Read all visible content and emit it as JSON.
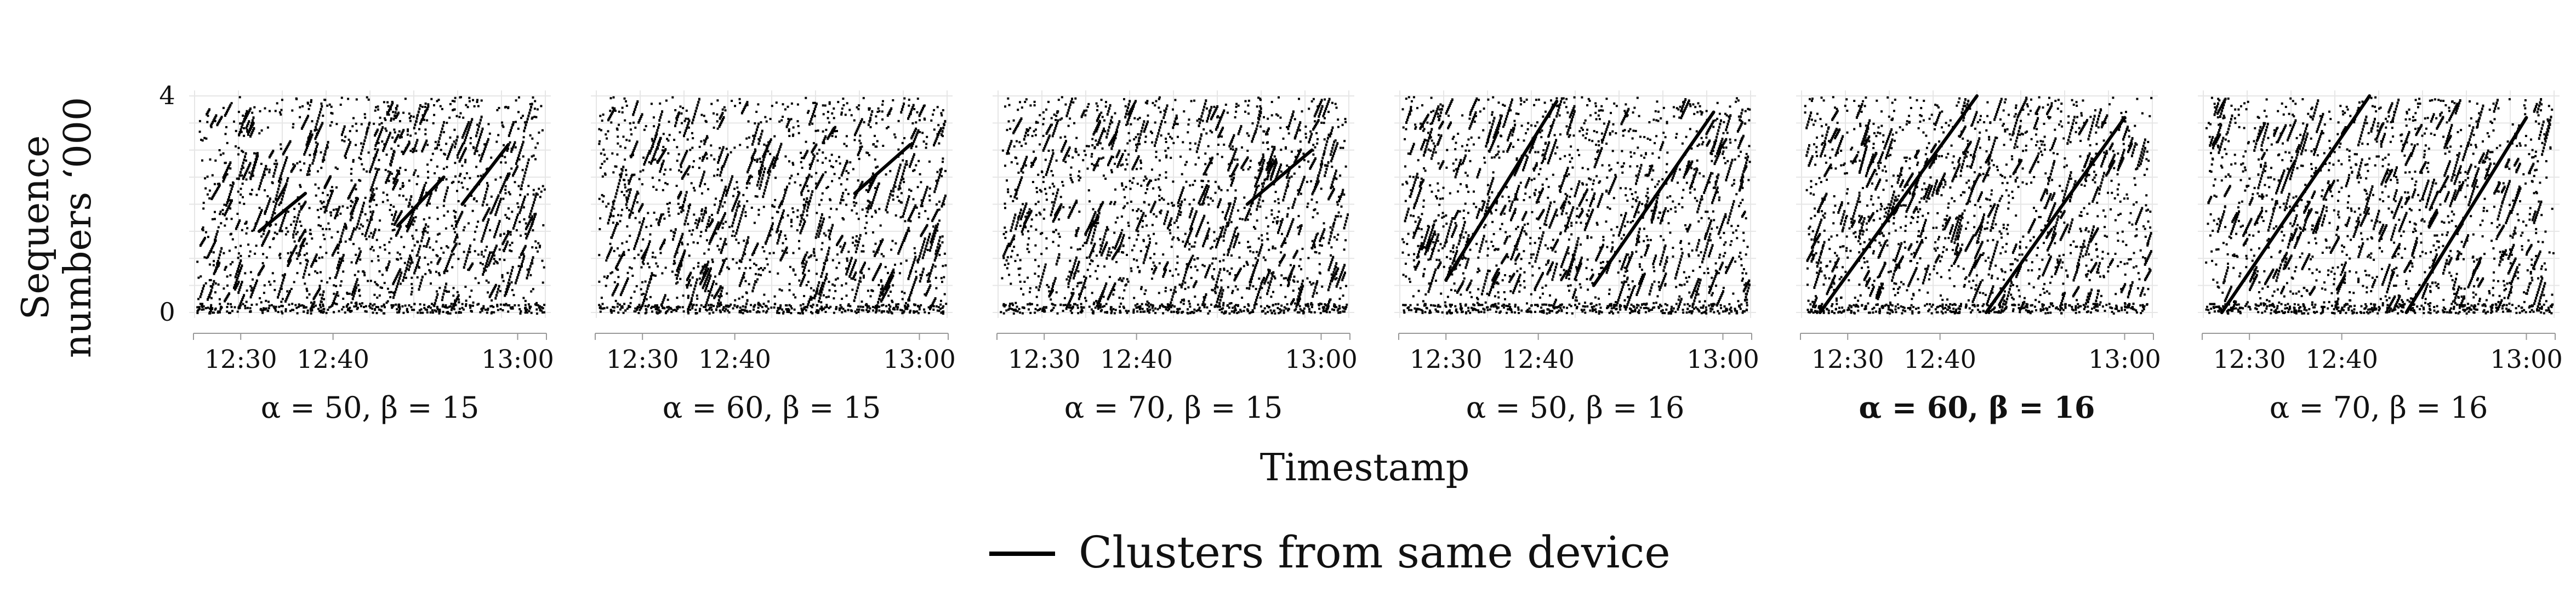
{
  "chart_data": {
    "type": "scatter",
    "ylabel": [
      "Sequence",
      "numbers ‘000"
    ],
    "xlabel": "Timestamp",
    "x_ticks": [
      "12:30",
      "12:40",
      "13:00"
    ],
    "y_ticks": [
      "0",
      "4"
    ],
    "y_range_thousands": [
      0,
      4
    ],
    "grid": true,
    "legend": {
      "placement": "bottom-center",
      "entries": [
        {
          "label": "Clusters from same device",
          "symbol": "line",
          "color": "#000000"
        }
      ]
    },
    "point_color": "#000000",
    "line_color": "#000000",
    "panels": [
      {
        "title": "α = 50, β = 15",
        "bold": false,
        "seed": 11,
        "cluster_lines": [
          {
            "x": [
              "12:32",
              "12:37"
            ],
            "y": [
              1.5,
              2.2
            ]
          },
          {
            "x": [
              "12:47",
              "12:52"
            ],
            "y": [
              1.6,
              2.5
            ]
          },
          {
            "x": [
              "12:54",
              "12:59"
            ],
            "y": [
              2.0,
              3.1
            ]
          }
        ]
      },
      {
        "title": "α = 60, β = 15",
        "bold": false,
        "seed": 23,
        "cluster_lines": [
          {
            "x": [
              "12:53",
              "12:59"
            ],
            "y": [
              2.2,
              3.1
            ]
          }
        ]
      },
      {
        "title": "α = 70, β = 15",
        "bold": false,
        "seed": 37,
        "cluster_lines": [
          {
            "x": [
              "12:52",
              "12:59"
            ],
            "y": [
              2.0,
              3.0
            ]
          }
        ]
      },
      {
        "title": "α = 50, β = 16",
        "bold": false,
        "seed": 41,
        "cluster_lines": [
          {
            "x": [
              "12:30",
              "12:42"
            ],
            "y": [
              0.6,
              3.9
            ]
          },
          {
            "x": [
              "12:46",
              "12:59"
            ],
            "y": [
              0.5,
              3.7
            ]
          }
        ]
      },
      {
        "title": "α = 60, β = 16",
        "bold": true,
        "seed": 53,
        "cluster_lines": [
          {
            "x": [
              "12:27",
              "12:44"
            ],
            "y": [
              0.0,
              4.0
            ]
          },
          {
            "x": [
              "12:45",
              "13:00"
            ],
            "y": [
              0.0,
              3.6
            ]
          }
        ]
      },
      {
        "title": "α = 70, β = 16",
        "bold": false,
        "seed": 67,
        "cluster_lines": [
          {
            "x": [
              "12:27",
              "12:43"
            ],
            "y": [
              0.0,
              4.0
            ]
          },
          {
            "x": [
              "12:47",
              "13:00"
            ],
            "y": [
              0.0,
              3.6
            ]
          }
        ]
      }
    ]
  }
}
